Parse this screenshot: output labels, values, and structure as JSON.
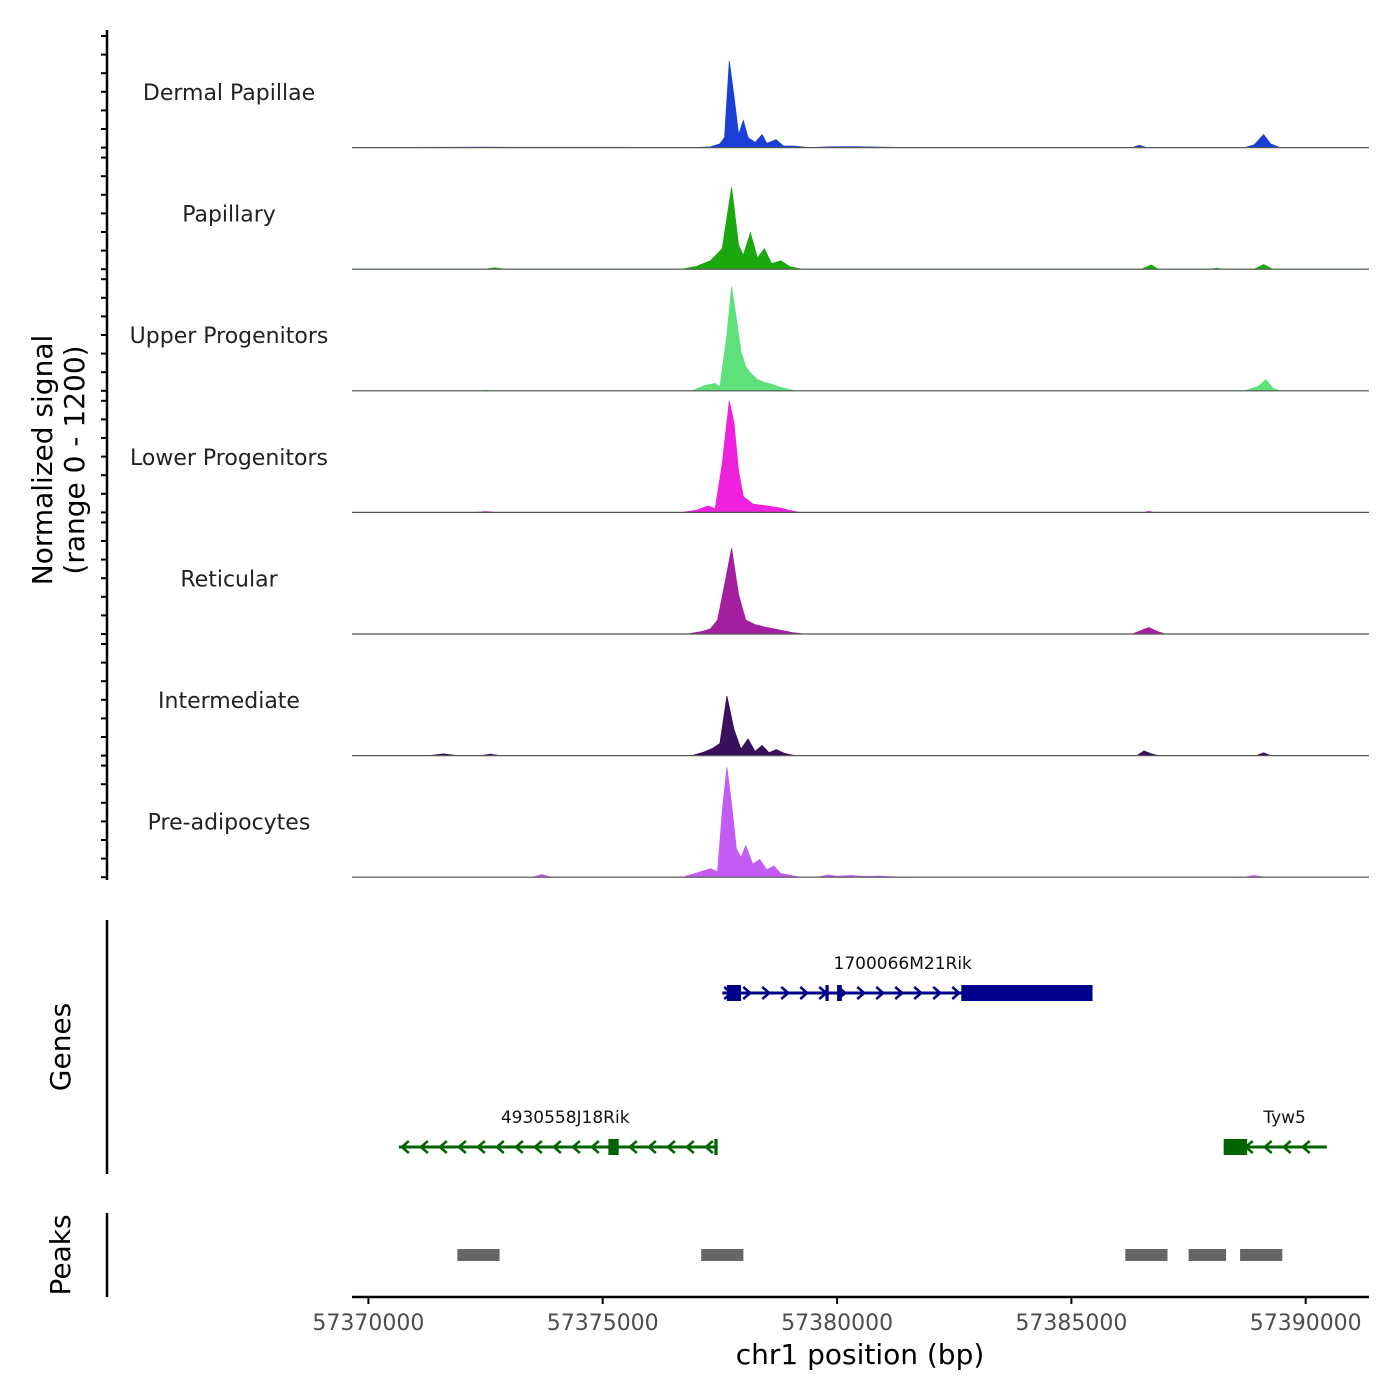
{
  "chart_data": {
    "type": "area",
    "subtype": "coverage-tracks",
    "chromosome": "chr1",
    "xlabel": "chr1 position (bp)",
    "ylabel_line1": "Normalized signal",
    "ylabel_line2": "(range 0 - 1200)",
    "yrange": [
      0,
      1200
    ],
    "xlim": [
      57369650,
      57391350
    ],
    "xticks": [
      57370000,
      57375000,
      57380000,
      57385000,
      57390000
    ],
    "xtick_labels": [
      "57370000",
      "57375000",
      "57380000",
      "57385000",
      "57390000"
    ],
    "tracks": [
      {
        "name": "Dermal Papillae",
        "color": "#1a3fd6",
        "points": [
          [
            57369650,
            0
          ],
          [
            57372500,
            4
          ],
          [
            57374800,
            3
          ],
          [
            57376900,
            0
          ],
          [
            57377300,
            8
          ],
          [
            57377500,
            40
          ],
          [
            57377600,
            110
          ],
          [
            57377700,
            930
          ],
          [
            57377800,
            550
          ],
          [
            57377900,
            140
          ],
          [
            57378000,
            290
          ],
          [
            57378100,
            110
          ],
          [
            57378250,
            55
          ],
          [
            57378400,
            140
          ],
          [
            57378500,
            45
          ],
          [
            57378700,
            85
          ],
          [
            57378850,
            18
          ],
          [
            57379100,
            15
          ],
          [
            57379400,
            0
          ],
          [
            57379800,
            8
          ],
          [
            57380300,
            10
          ],
          [
            57380800,
            6
          ],
          [
            57381500,
            0
          ],
          [
            57386300,
            0
          ],
          [
            57386450,
            25
          ],
          [
            57386600,
            0
          ],
          [
            57388700,
            0
          ],
          [
            57388900,
            30
          ],
          [
            57389100,
            140
          ],
          [
            57389250,
            40
          ],
          [
            57389450,
            0
          ],
          [
            57391350,
            0
          ]
        ]
      },
      {
        "name": "Papillary",
        "color": "#1aa80e",
        "points": [
          [
            57369650,
            0
          ],
          [
            57372500,
            0
          ],
          [
            57372700,
            15
          ],
          [
            57372900,
            0
          ],
          [
            57376700,
            0
          ],
          [
            57377000,
            30
          ],
          [
            57377300,
            90
          ],
          [
            57377550,
            220
          ],
          [
            57377750,
            880
          ],
          [
            57377900,
            260
          ],
          [
            57378000,
            150
          ],
          [
            57378150,
            390
          ],
          [
            57378300,
            120
          ],
          [
            57378450,
            220
          ],
          [
            57378600,
            60
          ],
          [
            57378800,
            90
          ],
          [
            57379000,
            25
          ],
          [
            57379250,
            0
          ],
          [
            57386500,
            0
          ],
          [
            57386700,
            45
          ],
          [
            57386850,
            0
          ],
          [
            57388000,
            0
          ],
          [
            57388100,
            12
          ],
          [
            57388200,
            0
          ],
          [
            57388900,
            0
          ],
          [
            57389100,
            50
          ],
          [
            57389300,
            0
          ],
          [
            57391350,
            0
          ]
        ]
      },
      {
        "name": "Upper Progenitors",
        "color": "#5ee07a",
        "points": [
          [
            57369650,
            0
          ],
          [
            57372400,
            0
          ],
          [
            57372500,
            8
          ],
          [
            57372600,
            0
          ],
          [
            57376900,
            0
          ],
          [
            57377200,
            60
          ],
          [
            57377400,
            80
          ],
          [
            57377500,
            40
          ],
          [
            57377650,
            600
          ],
          [
            57377750,
            1120
          ],
          [
            57377850,
            780
          ],
          [
            57377950,
            420
          ],
          [
            57378050,
            260
          ],
          [
            57378150,
            190
          ],
          [
            57378300,
            120
          ],
          [
            57378450,
            90
          ],
          [
            57378600,
            70
          ],
          [
            57378800,
            35
          ],
          [
            57379100,
            0
          ],
          [
            57388700,
            0
          ],
          [
            57389000,
            50
          ],
          [
            57389150,
            120
          ],
          [
            57389300,
            25
          ],
          [
            57389450,
            0
          ],
          [
            57391350,
            0
          ]
        ]
      },
      {
        "name": "Lower Progenitors",
        "color": "#ee22dd",
        "points": [
          [
            57369650,
            0
          ],
          [
            57372300,
            0
          ],
          [
            57372500,
            10
          ],
          [
            57372700,
            0
          ],
          [
            57376700,
            0
          ],
          [
            57377000,
            25
          ],
          [
            57377250,
            70
          ],
          [
            57377400,
            40
          ],
          [
            57377550,
            520
          ],
          [
            57377700,
            1240
          ],
          [
            57377800,
            960
          ],
          [
            57377900,
            440
          ],
          [
            57378000,
            170
          ],
          [
            57378200,
            90
          ],
          [
            57378500,
            70
          ],
          [
            57378800,
            45
          ],
          [
            57379000,
            20
          ],
          [
            57379200,
            0
          ],
          [
            57386550,
            0
          ],
          [
            57386650,
            12
          ],
          [
            57386750,
            0
          ],
          [
            57391350,
            0
          ]
        ]
      },
      {
        "name": "Reticular",
        "color": "#a31fa0",
        "points": [
          [
            57369650,
            0
          ],
          [
            57376800,
            0
          ],
          [
            57377100,
            25
          ],
          [
            57377300,
            55
          ],
          [
            57377450,
            150
          ],
          [
            57377600,
            530
          ],
          [
            57377750,
            920
          ],
          [
            57377900,
            420
          ],
          [
            57378050,
            150
          ],
          [
            57378250,
            100
          ],
          [
            57378500,
            70
          ],
          [
            57378800,
            40
          ],
          [
            57379050,
            15
          ],
          [
            57379300,
            0
          ],
          [
            57386300,
            0
          ],
          [
            57386500,
            40
          ],
          [
            57386650,
            70
          ],
          [
            57386850,
            25
          ],
          [
            57387000,
            0
          ],
          [
            57391350,
            0
          ]
        ]
      },
      {
        "name": "Intermediate",
        "color": "#3a0f5c",
        "points": [
          [
            57369650,
            0
          ],
          [
            57371300,
            0
          ],
          [
            57371600,
            18
          ],
          [
            57371900,
            0
          ],
          [
            57372400,
            0
          ],
          [
            57372600,
            15
          ],
          [
            57372800,
            0
          ],
          [
            57376900,
            0
          ],
          [
            57377150,
            35
          ],
          [
            57377350,
            80
          ],
          [
            57377500,
            130
          ],
          [
            57377650,
            640
          ],
          [
            57377800,
            280
          ],
          [
            57377950,
            70
          ],
          [
            57378100,
            180
          ],
          [
            57378250,
            45
          ],
          [
            57378400,
            110
          ],
          [
            57378550,
            30
          ],
          [
            57378700,
            65
          ],
          [
            57378900,
            20
          ],
          [
            57379100,
            0
          ],
          [
            57386400,
            0
          ],
          [
            57386550,
            50
          ],
          [
            57386700,
            20
          ],
          [
            57386850,
            0
          ],
          [
            57388950,
            0
          ],
          [
            57389100,
            30
          ],
          [
            57389250,
            0
          ],
          [
            57391350,
            0
          ]
        ]
      },
      {
        "name": "Pre-adipocytes",
        "color": "#c25cf5",
        "points": [
          [
            57369650,
            0
          ],
          [
            57373500,
            0
          ],
          [
            57373700,
            28
          ],
          [
            57373900,
            0
          ],
          [
            57376700,
            0
          ],
          [
            57377000,
            45
          ],
          [
            57377300,
            90
          ],
          [
            57377450,
            60
          ],
          [
            57377550,
            700
          ],
          [
            57377650,
            1180
          ],
          [
            57377750,
            780
          ],
          [
            57377850,
            310
          ],
          [
            57377950,
            210
          ],
          [
            57378050,
            340
          ],
          [
            57378200,
            140
          ],
          [
            57378350,
            190
          ],
          [
            57378500,
            80
          ],
          [
            57378650,
            120
          ],
          [
            57378800,
            40
          ],
          [
            57379000,
            20
          ],
          [
            57379200,
            0
          ],
          [
            57379600,
            0
          ],
          [
            57379800,
            25
          ],
          [
            57380000,
            10
          ],
          [
            57380300,
            18
          ],
          [
            57380600,
            8
          ],
          [
            57380900,
            12
          ],
          [
            57381400,
            0
          ],
          [
            57388700,
            0
          ],
          [
            57388900,
            18
          ],
          [
            57389100,
            0
          ],
          [
            57391350,
            0
          ]
        ]
      }
    ],
    "genes": [
      {
        "name": "1700066M21Rik",
        "strand": "+",
        "color": "#00008b",
        "row": 1,
        "start": 57377550,
        "end": 57385450,
        "exons": [
          [
            57377650,
            57377950
          ],
          [
            57379750,
            57379820
          ],
          [
            57380000,
            57380100
          ],
          [
            57382650,
            57385450
          ]
        ]
      },
      {
        "name": "4930558J18Rik",
        "strand": "-",
        "color": "#006400",
        "row": 2,
        "start": 57370650,
        "end": 57377450,
        "exons": [
          [
            57375120,
            57375340
          ],
          [
            57377380,
            57377450
          ]
        ]
      },
      {
        "name": "Tyw5",
        "strand": "-",
        "color": "#006400",
        "row": 2,
        "start": 57388250,
        "end": 57390450,
        "exons": [
          [
            57388250,
            57388750
          ]
        ]
      }
    ],
    "peaks": [
      [
        57371900,
        57372800
      ],
      [
        57377100,
        57378000
      ],
      [
        57386150,
        57387050
      ],
      [
        57387500,
        57388300
      ],
      [
        57388600,
        57389500
      ]
    ],
    "panel_labels": {
      "genes": "Genes",
      "peaks": "Peaks"
    }
  }
}
